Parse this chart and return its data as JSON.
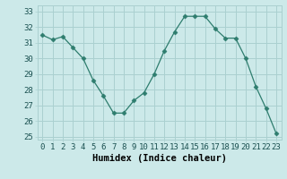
{
  "x": [
    0,
    1,
    2,
    3,
    4,
    5,
    6,
    7,
    8,
    9,
    10,
    11,
    12,
    13,
    14,
    15,
    16,
    17,
    18,
    19,
    20,
    21,
    22,
    23
  ],
  "y": [
    31.5,
    31.2,
    31.4,
    30.7,
    30.0,
    28.6,
    27.6,
    26.5,
    26.5,
    27.3,
    27.8,
    29.0,
    30.5,
    31.7,
    32.7,
    32.7,
    32.7,
    31.9,
    31.3,
    31.3,
    30.0,
    28.2,
    26.8,
    25.2
  ],
  "line_color": "#2e7d6e",
  "marker": "D",
  "marker_size": 2.5,
  "bg_color": "#cce9e9",
  "grid_color": "#aad0d0",
  "xlabel": "Humidex (Indice chaleur)",
  "xlim": [
    -0.5,
    23.5
  ],
  "ylim": [
    24.8,
    33.4
  ],
  "yticks": [
    25,
    26,
    27,
    28,
    29,
    30,
    31,
    32,
    33
  ],
  "xticks": [
    0,
    1,
    2,
    3,
    4,
    5,
    6,
    7,
    8,
    9,
    10,
    11,
    12,
    13,
    14,
    15,
    16,
    17,
    18,
    19,
    20,
    21,
    22,
    23
  ],
  "tick_fontsize": 6.5,
  "label_fontsize": 7.5
}
